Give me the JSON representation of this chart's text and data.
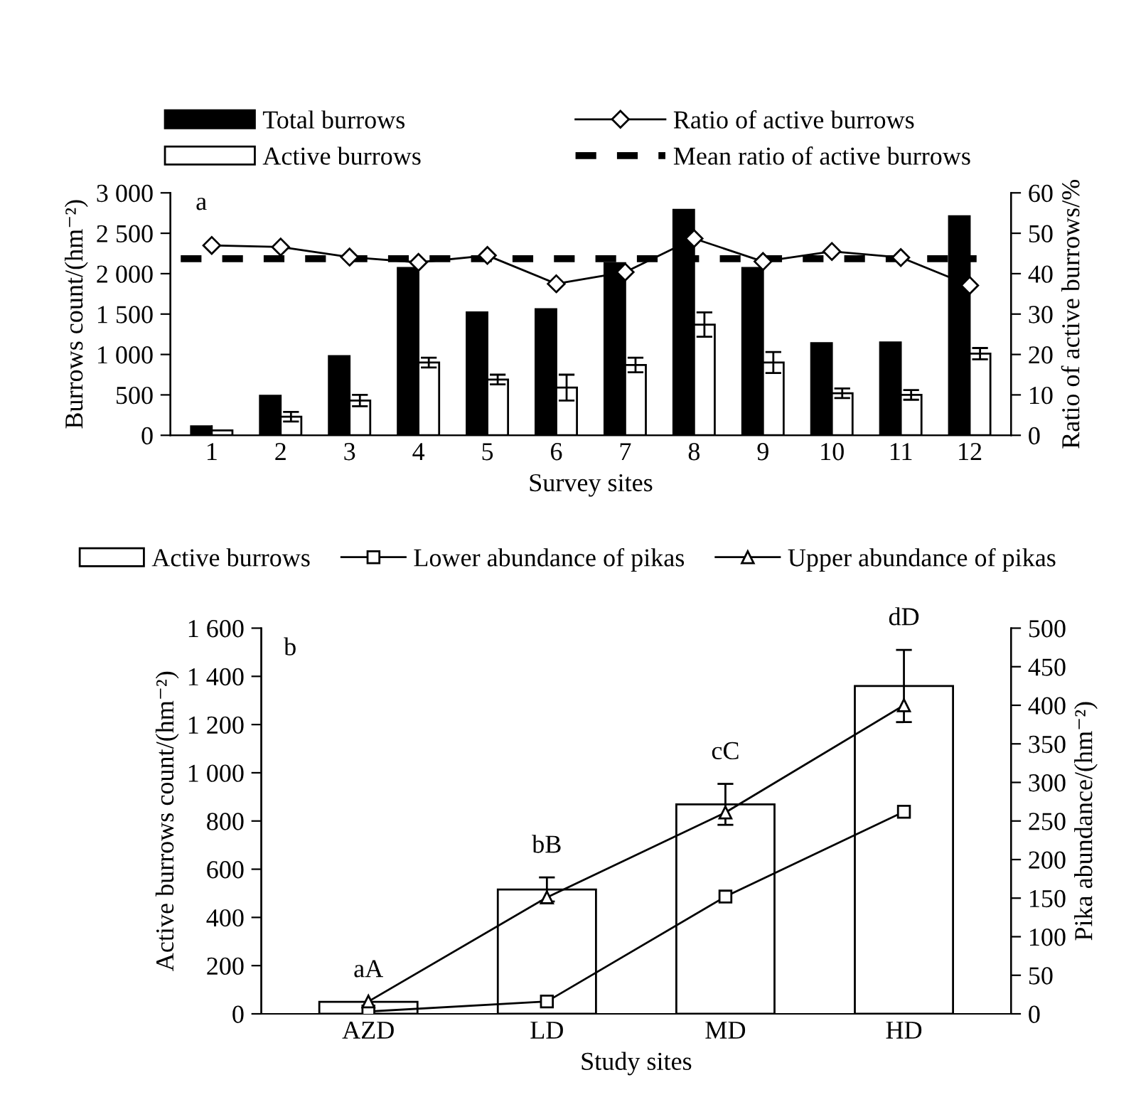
{
  "chart_data": [
    {
      "type": "bar",
      "categories": [
        "1",
        "2",
        "3",
        "4",
        "5",
        "6",
        "7",
        "8",
        "9",
        "10",
        "11",
        "12"
      ],
      "xlabel": "Survey sites",
      "ylabel": "Burrows count/(hm⁻²)",
      "y2label": "Ratio of active burrows/%",
      "series": [
        {
          "name": "Total burrows",
          "color": "#000000",
          "values": [
            110,
            490,
            980,
            2070,
            1520,
            1560,
            2130,
            2790,
            2070,
            1140,
            1150,
            2710
          ]
        },
        {
          "name": "Active burrows",
          "color": "#ffffff",
          "values": [
            60,
            230,
            430,
            900,
            690,
            590,
            870,
            1370,
            900,
            520,
            500,
            1010
          ],
          "errors": [
            null,
            60,
            70,
            60,
            60,
            160,
            90,
            150,
            130,
            60,
            60,
            70
          ]
        },
        {
          "name": "Ratio of active burrows",
          "type": "line",
          "axis": "y2",
          "color": "#000000",
          "marker": "diamond",
          "values": [
            47,
            46.6,
            44.1,
            42.8,
            44.5,
            37.5,
            40.4,
            48.7,
            43,
            45.5,
            44,
            37.1
          ]
        }
      ],
      "ref_lines": [
        {
          "axis": "y2",
          "value": 43.7,
          "label": "Mean ratio of active burrows",
          "line_style": "dashed",
          "color": "#000000"
        }
      ],
      "ylim": [
        0,
        3000
      ],
      "yticks": [
        0,
        500,
        {
          "value": 1000,
          "label": "1 000"
        },
        {
          "value": 1500,
          "label": "1 500"
        },
        {
          "value": 2000,
          "label": "2 000"
        },
        {
          "value": 2500,
          "label": "2 500"
        },
        {
          "value": 3000,
          "label": "3 000"
        }
      ],
      "y2lim": [
        0,
        60
      ],
      "y2ticks": [
        0,
        10,
        20,
        30,
        40,
        50,
        60
      ],
      "annotations": [
        "a"
      ],
      "legend": "top",
      "grid": false
    },
    {
      "type": "bar",
      "categories": [
        "AZD",
        "LD",
        "MD",
        "HD"
      ],
      "xlabel": "Study sites",
      "ylabel": "Active burrows count/(hm⁻²)",
      "y2label": "Pika abundance/(hm⁻²)",
      "series": [
        {
          "name": "Active burrows",
          "color": "#ffffff",
          "values": [
            50,
            516,
            869,
            1360
          ],
          "errors": [
            null,
            50,
            85,
            150
          ]
        },
        {
          "name": "Lower abundance of pikas",
          "type": "line",
          "axis": "y2",
          "color": "#000000",
          "marker": "square",
          "values": [
            3,
            16,
            152,
            262
          ]
        },
        {
          "name": "Upper abundance of pikas",
          "type": "line",
          "axis": "y2",
          "color": "#000000",
          "marker": "triangle",
          "values": [
            16,
            151,
            261,
            400
          ]
        }
      ],
      "ylim": [
        0,
        1600
      ],
      "yticks": [
        0,
        200,
        400,
        600,
        800,
        {
          "value": 1000,
          "label": "1 000"
        },
        {
          "value": 1200,
          "label": "1 200"
        },
        {
          "value": 1400,
          "label": "1 400"
        },
        {
          "value": 1600,
          "label": "1 600"
        }
      ],
      "y2lim": [
        0,
        500
      ],
      "y2ticks": [
        0,
        50,
        100,
        150,
        200,
        250,
        300,
        350,
        400,
        450,
        500
      ],
      "annotations": [
        "b",
        "aA",
        "bB",
        "cC",
        "dD"
      ],
      "legend": "top",
      "grid": false
    }
  ]
}
